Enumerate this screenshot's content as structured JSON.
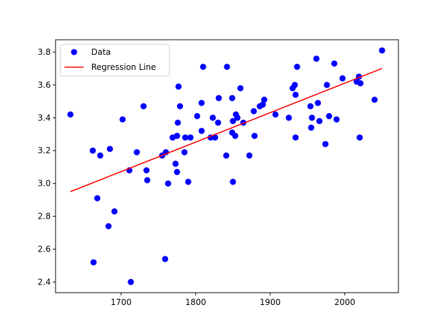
{
  "chart_data": {
    "type": "scatter",
    "xlim": [
      1612,
      2072
    ],
    "ylim": [
      2.335,
      3.875
    ],
    "x_ticks": [
      1700,
      1800,
      1900,
      2000
    ],
    "y_ticks": [
      2.4,
      2.6,
      2.8,
      3.0,
      3.2,
      3.4,
      3.6,
      3.8
    ],
    "legend_position": "upper-left",
    "grid": false,
    "series": [
      {
        "name": "Data",
        "kind": "scatter",
        "color": "#0000ff",
        "points": [
          [
            1632,
            3.42
          ],
          [
            1662,
            3.2
          ],
          [
            1663,
            2.52
          ],
          [
            1668,
            2.91
          ],
          [
            1672,
            3.17
          ],
          [
            1683,
            2.74
          ],
          [
            1685,
            3.21
          ],
          [
            1691,
            2.83
          ],
          [
            1702,
            3.39
          ],
          [
            1711,
            3.08
          ],
          [
            1713,
            2.4
          ],
          [
            1721,
            3.19
          ],
          [
            1730,
            3.47
          ],
          [
            1734,
            3.08
          ],
          [
            1735,
            3.02
          ],
          [
            1755,
            3.17
          ],
          [
            1759,
            2.54
          ],
          [
            1760,
            3.19
          ],
          [
            1763,
            3.0
          ],
          [
            1769,
            3.28
          ],
          [
            1773,
            3.12
          ],
          [
            1775,
            3.29
          ],
          [
            1775,
            3.07
          ],
          [
            1776,
            3.37
          ],
          [
            1777,
            3.59
          ],
          [
            1779,
            3.47
          ],
          [
            1785,
            3.19
          ],
          [
            1786,
            3.28
          ],
          [
            1790,
            3.01
          ],
          [
            1793,
            3.28
          ],
          [
            1802,
            3.41
          ],
          [
            1808,
            3.32
          ],
          [
            1808,
            3.49
          ],
          [
            1810,
            3.71
          ],
          [
            1820,
            3.28
          ],
          [
            1823,
            3.4
          ],
          [
            1826,
            3.28
          ],
          [
            1830,
            3.37
          ],
          [
            1831,
            3.52
          ],
          [
            1841,
            3.17
          ],
          [
            1842,
            3.71
          ],
          [
            1849,
            3.31
          ],
          [
            1849,
            3.52
          ],
          [
            1850,
            3.38
          ],
          [
            1850,
            3.01
          ],
          [
            1853,
            3.29
          ],
          [
            1854,
            3.42
          ],
          [
            1856,
            3.4
          ],
          [
            1860,
            3.58
          ],
          [
            1864,
            3.37
          ],
          [
            1872,
            3.17
          ],
          [
            1878,
            3.44
          ],
          [
            1879,
            3.29
          ],
          [
            1886,
            3.47
          ],
          [
            1890,
            3.48
          ],
          [
            1892,
            3.51
          ],
          [
            1907,
            3.42
          ],
          [
            1925,
            3.4
          ],
          [
            1930,
            3.58
          ],
          [
            1933,
            3.6
          ],
          [
            1934,
            3.54
          ],
          [
            1934,
            3.28
          ],
          [
            1936,
            3.71
          ],
          [
            1954,
            3.47
          ],
          [
            1955,
            3.34
          ],
          [
            1956,
            3.4
          ],
          [
            1962,
            3.76
          ],
          [
            1964,
            3.49
          ],
          [
            1966,
            3.38
          ],
          [
            1974,
            3.24
          ],
          [
            1976,
            3.6
          ],
          [
            1979,
            3.41
          ],
          [
            1986,
            3.73
          ],
          [
            1989,
            3.39
          ],
          [
            1997,
            3.64
          ],
          [
            2016,
            3.62
          ],
          [
            2019,
            3.65
          ],
          [
            2020,
            3.28
          ],
          [
            2021,
            3.61
          ],
          [
            2040,
            3.51
          ],
          [
            2050,
            3.81
          ]
        ]
      },
      {
        "name": "Regression Line",
        "kind": "line",
        "color": "#ff0000",
        "points": [
          [
            1632,
            2.95
          ],
          [
            2050,
            3.7
          ]
        ]
      }
    ]
  }
}
